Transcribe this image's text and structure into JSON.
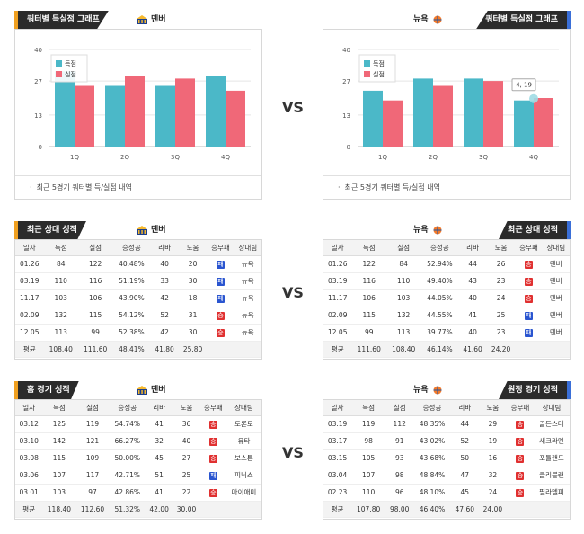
{
  "vs_label": "VS",
  "sections": {
    "chart_title": "쿼터별 득실점 그래프",
    "recent_title": "최근 상대 성적",
    "home_title": "홈 경기 성적",
    "away_title": "원정 경기 성적"
  },
  "teams": {
    "left": "덴버",
    "right": "뉴욕"
  },
  "chart_note": "최근 5경기 쿼터별 득/실점 내역",
  "legend": {
    "scored": "득점",
    "allowed": "실점"
  },
  "tooltip": "4, 19",
  "colors": {
    "scored": "#4bb8c8",
    "allowed": "#f06878"
  },
  "chart_data": [
    {
      "type": "bar",
      "categories": [
        "1Q",
        "2Q",
        "3Q",
        "4Q"
      ],
      "series": [
        {
          "name": "득점",
          "values": [
            31,
            25,
            25,
            29
          ]
        },
        {
          "name": "실점",
          "values": [
            25,
            29,
            28,
            23
          ]
        }
      ],
      "ylim": [
        0,
        40
      ],
      "yticks": [
        0,
        13,
        27,
        40
      ],
      "legend": "top-left"
    },
    {
      "type": "bar",
      "categories": [
        "1Q",
        "2Q",
        "3Q",
        "4Q"
      ],
      "series": [
        {
          "name": "득점",
          "values": [
            23,
            28,
            28,
            19
          ]
        },
        {
          "name": "실점",
          "values": [
            19,
            25,
            27,
            20
          ]
        }
      ],
      "ylim": [
        0,
        40
      ],
      "yticks": [
        0,
        13,
        27,
        40
      ],
      "legend": "top-left"
    }
  ],
  "table_headers": [
    "일자",
    "득점",
    "실점",
    "승성공",
    "리바",
    "도움",
    "승무패",
    "상대팀"
  ],
  "recent_left": {
    "rows": [
      [
        "01.26",
        "84",
        "122",
        "40.48%",
        "40",
        "20",
        "패",
        "뉴욕"
      ],
      [
        "03.19",
        "110",
        "116",
        "51.19%",
        "33",
        "30",
        "패",
        "뉴욕"
      ],
      [
        "11.17",
        "103",
        "106",
        "43.90%",
        "42",
        "18",
        "패",
        "뉴욕"
      ],
      [
        "02.09",
        "132",
        "115",
        "54.12%",
        "52",
        "31",
        "승",
        "뉴욕"
      ],
      [
        "12.05",
        "113",
        "99",
        "52.38%",
        "42",
        "30",
        "승",
        "뉴욕"
      ]
    ],
    "avg": [
      "평균",
      "108.40",
      "111.60",
      "48.41%",
      "41.80",
      "25.80",
      "",
      ""
    ]
  },
  "recent_right": {
    "rows": [
      [
        "01.26",
        "122",
        "84",
        "52.94%",
        "44",
        "26",
        "승",
        "덴버"
      ],
      [
        "03.19",
        "116",
        "110",
        "49.40%",
        "43",
        "23",
        "승",
        "덴버"
      ],
      [
        "11.17",
        "106",
        "103",
        "44.05%",
        "40",
        "24",
        "승",
        "덴버"
      ],
      [
        "02.09",
        "115",
        "132",
        "44.55%",
        "41",
        "25",
        "패",
        "덴버"
      ],
      [
        "12.05",
        "99",
        "113",
        "39.77%",
        "40",
        "23",
        "패",
        "덴버"
      ]
    ],
    "avg": [
      "평균",
      "111.60",
      "108.40",
      "46.14%",
      "41.60",
      "24.20",
      "",
      ""
    ]
  },
  "home_left": {
    "rows": [
      [
        "03.12",
        "125",
        "119",
        "54.74%",
        "41",
        "36",
        "승",
        "토론토"
      ],
      [
        "03.10",
        "142",
        "121",
        "66.27%",
        "32",
        "40",
        "승",
        "유타"
      ],
      [
        "03.08",
        "115",
        "109",
        "50.00%",
        "45",
        "27",
        "승",
        "보스톤"
      ],
      [
        "03.06",
        "107",
        "117",
        "42.71%",
        "51",
        "25",
        "패",
        "피닉스"
      ],
      [
        "03.01",
        "103",
        "97",
        "42.86%",
        "41",
        "22",
        "승",
        "마이애미"
      ]
    ],
    "avg": [
      "평균",
      "118.40",
      "112.60",
      "51.32%",
      "42.00",
      "30.00",
      "",
      ""
    ]
  },
  "away_right": {
    "rows": [
      [
        "03.19",
        "119",
        "112",
        "48.35%",
        "44",
        "29",
        "승",
        "골든스테"
      ],
      [
        "03.17",
        "98",
        "91",
        "43.02%",
        "52",
        "19",
        "승",
        "새크라멘"
      ],
      [
        "03.15",
        "105",
        "93",
        "43.68%",
        "50",
        "16",
        "승",
        "포틀랜드"
      ],
      [
        "03.04",
        "107",
        "98",
        "48.84%",
        "47",
        "32",
        "승",
        "클리블랜"
      ],
      [
        "02.23",
        "110",
        "96",
        "48.10%",
        "45",
        "24",
        "승",
        "필라델피"
      ]
    ],
    "avg": [
      "평균",
      "107.80",
      "98.00",
      "46.40%",
      "47.60",
      "24.00",
      "",
      ""
    ]
  }
}
